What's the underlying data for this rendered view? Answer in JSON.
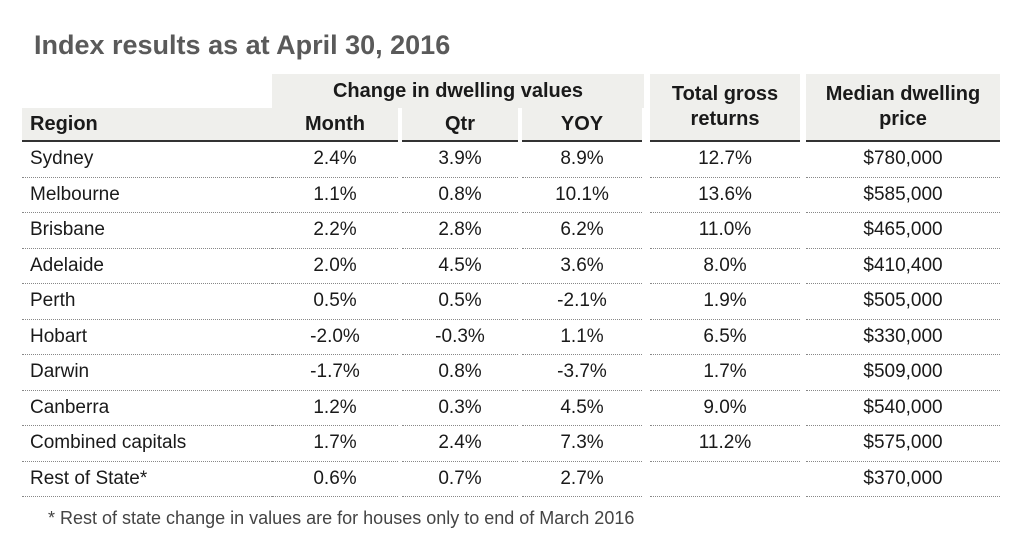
{
  "title": "Index results as at April 30, 2016",
  "table": {
    "group_header": "Change in dwelling values",
    "columns": [
      "Region",
      "Month",
      "Qtr",
      "YOY",
      "Total gross returns",
      "Median dwelling price"
    ],
    "rows": [
      [
        "Sydney",
        "2.4%",
        "3.9%",
        "8.9%",
        "12.7%",
        "$780,000"
      ],
      [
        "Melbourne",
        "1.1%",
        "0.8%",
        "10.1%",
        "13.6%",
        "$585,000"
      ],
      [
        "Brisbane",
        "2.2%",
        "2.8%",
        "6.2%",
        "11.0%",
        "$465,000"
      ],
      [
        "Adelaide",
        "2.0%",
        "4.5%",
        "3.6%",
        "8.0%",
        "$410,400"
      ],
      [
        "Perth",
        "0.5%",
        "0.5%",
        "-2.1%",
        "1.9%",
        "$505,000"
      ],
      [
        "Hobart",
        "-2.0%",
        "-0.3%",
        "1.1%",
        "6.5%",
        "$330,000"
      ],
      [
        "Darwin",
        "-1.7%",
        "0.8%",
        "-3.7%",
        "1.7%",
        "$509,000"
      ],
      [
        "Canberra",
        "1.2%",
        "0.3%",
        "4.5%",
        "9.0%",
        "$540,000"
      ],
      [
        "Combined capitals",
        "1.7%",
        "2.4%",
        "7.3%",
        "11.2%",
        "$575,000"
      ],
      [
        "Rest of State*",
        "0.6%",
        "0.7%",
        "2.7%",
        null,
        "$370,000"
      ]
    ]
  },
  "footnote": "* Rest of state change in values are for houses only to end of March 2016"
}
